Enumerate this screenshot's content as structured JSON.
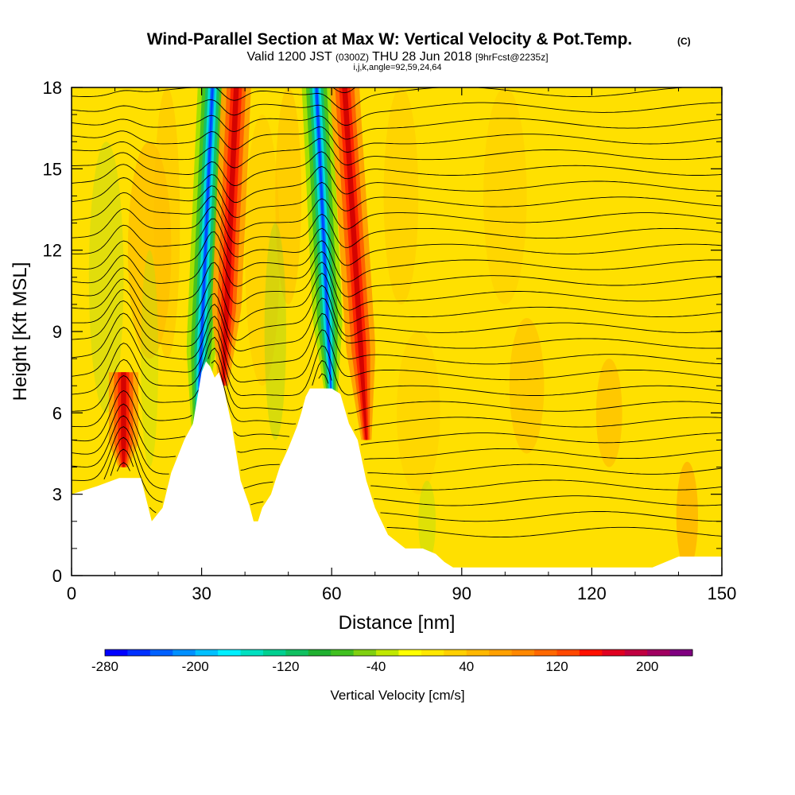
{
  "chart_data": {
    "type": "heatmap",
    "title": "Wind-Parallel Section at Max W: Vertical Velocity & Pot.Temp.",
    "title_mark": "(C)",
    "subtitle_parts": [
      "Valid 1200 JST",
      "(0300Z)",
      "THU 28 Jun 2018",
      "[9hrFcst@2235z]"
    ],
    "subtitle2": "i,j,k,angle=92,59,24,64",
    "xlabel": "Distance [nm]",
    "ylabel": "Height [Kft MSL]",
    "xlim": [
      0,
      150
    ],
    "ylim": [
      0,
      18
    ],
    "xticks": [
      0,
      30,
      60,
      90,
      120,
      150
    ],
    "yticks": [
      0,
      3,
      6,
      9,
      12,
      15,
      18
    ],
    "colorbar": {
      "label": "Vertical Velocity [cm/s]",
      "range": [
        -280,
        240
      ],
      "ticks": [
        -280,
        -200,
        -120,
        -40,
        40,
        120,
        200
      ],
      "colors": [
        "#0000ff",
        "#0030ff",
        "#0060ff",
        "#0090ff",
        "#00c0ff",
        "#00f0ff",
        "#00e0c0",
        "#00d090",
        "#10c060",
        "#20b030",
        "#40c020",
        "#80d010",
        "#c0e800",
        "#ffff00",
        "#ffe800",
        "#ffd000",
        "#ffb800",
        "#ffa000",
        "#ff8800",
        "#ff6800",
        "#ff4800",
        "#ff1000",
        "#e00020",
        "#c00040",
        "#a00060",
        "#800080"
      ]
    },
    "streaks": [
      {
        "kind": "updraft",
        "x_base": 12,
        "x_top": 12,
        "z_bottom": 4,
        "z_top": 7.5
      },
      {
        "kind": "downdraft",
        "x_base": 29,
        "x_top": 32.5,
        "z_bottom": 5,
        "z_top": 18
      },
      {
        "kind": "updraft",
        "x_base": 35,
        "x_top": 38,
        "z_bottom": 7,
        "z_top": 18
      },
      {
        "kind": "downdraft",
        "x_base": 60,
        "x_top": 56.5,
        "z_bottom": 6.3,
        "z_top": 18
      },
      {
        "kind": "updraft",
        "x_base": 68,
        "x_top": 63,
        "z_bottom": 5,
        "z_top": 18
      }
    ],
    "terrain": {
      "x": [
        0,
        6,
        11,
        16,
        18.5,
        21,
        23,
        26,
        28,
        30,
        31,
        32,
        33,
        34,
        35,
        37,
        39,
        41,
        42,
        43,
        44,
        46,
        48,
        50,
        52,
        53,
        54,
        55,
        56,
        58,
        60,
        62,
        64,
        66,
        68,
        70,
        73,
        77,
        81,
        84,
        86,
        88,
        90,
        96,
        100,
        110,
        123,
        134,
        140,
        150
      ],
      "z": [
        3.0,
        3.3,
        3.6,
        3.6,
        2.0,
        2.5,
        3.8,
        5.0,
        5.6,
        7.5,
        7.9,
        7.7,
        7.3,
        7.5,
        7.0,
        5.5,
        3.5,
        2.6,
        2.0,
        2.0,
        2.5,
        3.0,
        4.0,
        4.7,
        5.5,
        6.0,
        6.6,
        6.9,
        6.9,
        6.9,
        6.9,
        6.7,
        5.6,
        5.0,
        3.5,
        2.5,
        1.5,
        1.0,
        1.0,
        0.8,
        0.5,
        0.3,
        0.3,
        0.3,
        0.3,
        0.3,
        0.3,
        0.3,
        0.7,
        0.7
      ]
    }
  }
}
